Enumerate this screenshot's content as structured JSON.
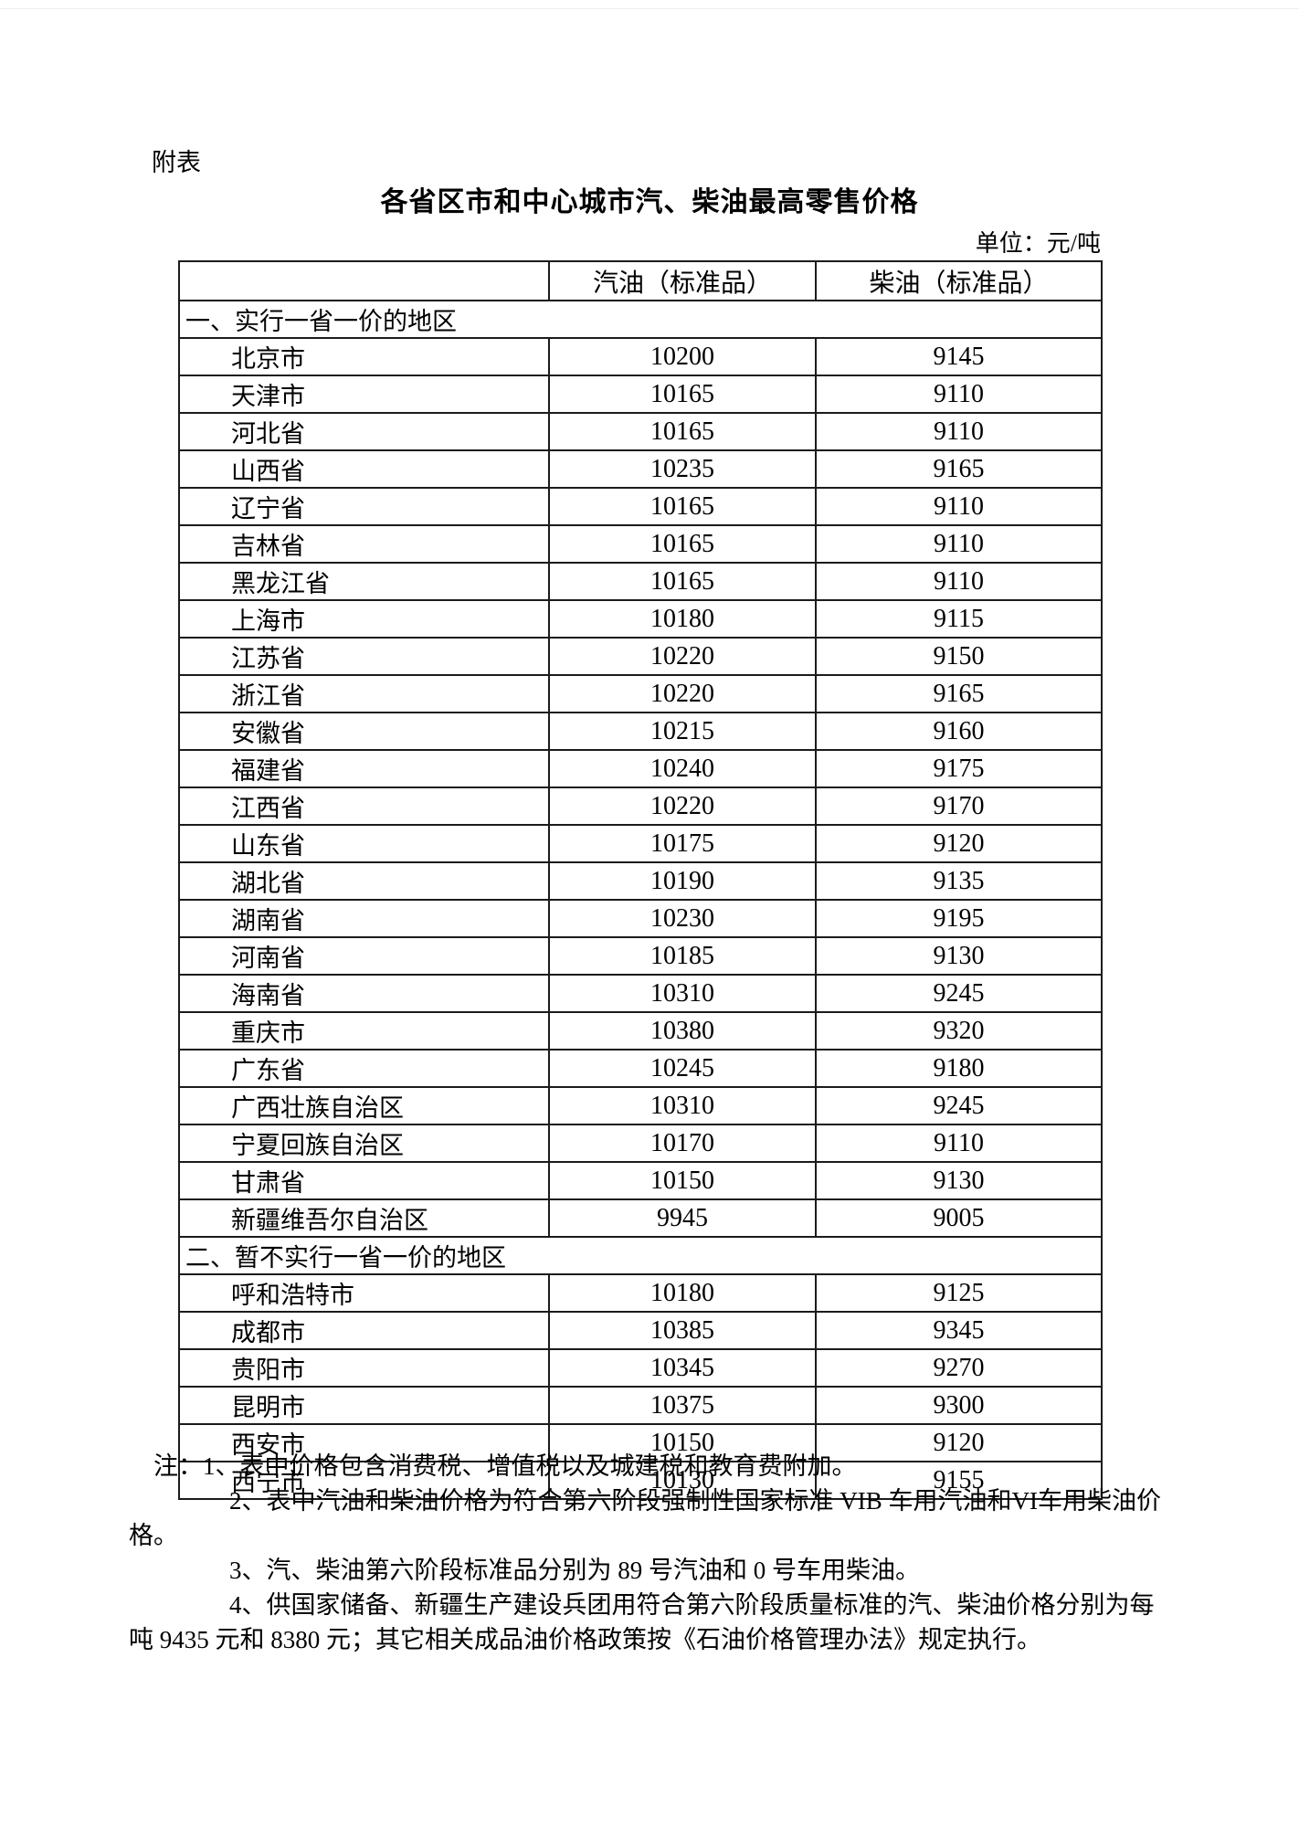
{
  "page": {
    "annex_label": "附表",
    "title": "各省区市和中心城市汽、柴油最高零售价格",
    "unit_label": "单位：元/吨"
  },
  "table": {
    "columns": [
      "",
      "汽油（标准品）",
      "柴油（标准品）"
    ],
    "sections": [
      {
        "heading": "一、实行一省一价的地区",
        "rows": [
          {
            "region": "北京市",
            "gasoline": "10200",
            "diesel": "9145"
          },
          {
            "region": "天津市",
            "gasoline": "10165",
            "diesel": "9110"
          },
          {
            "region": "河北省",
            "gasoline": "10165",
            "diesel": "9110"
          },
          {
            "region": "山西省",
            "gasoline": "10235",
            "diesel": "9165"
          },
          {
            "region": "辽宁省",
            "gasoline": "10165",
            "diesel": "9110"
          },
          {
            "region": "吉林省",
            "gasoline": "10165",
            "diesel": "9110"
          },
          {
            "region": "黑龙江省",
            "gasoline": "10165",
            "diesel": "9110"
          },
          {
            "region": "上海市",
            "gasoline": "10180",
            "diesel": "9115"
          },
          {
            "region": "江苏省",
            "gasoline": "10220",
            "diesel": "9150"
          },
          {
            "region": "浙江省",
            "gasoline": "10220",
            "diesel": "9165"
          },
          {
            "region": "安徽省",
            "gasoline": "10215",
            "diesel": "9160"
          },
          {
            "region": "福建省",
            "gasoline": "10240",
            "diesel": "9175"
          },
          {
            "region": "江西省",
            "gasoline": "10220",
            "diesel": "9170"
          },
          {
            "region": "山东省",
            "gasoline": "10175",
            "diesel": "9120"
          },
          {
            "region": "湖北省",
            "gasoline": "10190",
            "diesel": "9135"
          },
          {
            "region": "湖南省",
            "gasoline": "10230",
            "diesel": "9195"
          },
          {
            "region": "河南省",
            "gasoline": "10185",
            "diesel": "9130"
          },
          {
            "region": "海南省",
            "gasoline": "10310",
            "diesel": "9245"
          },
          {
            "region": "重庆市",
            "gasoline": "10380",
            "diesel": "9320"
          },
          {
            "region": "广东省",
            "gasoline": "10245",
            "diesel": "9180"
          },
          {
            "region": "广西壮族自治区",
            "gasoline": "10310",
            "diesel": "9245"
          },
          {
            "region": "宁夏回族自治区",
            "gasoline": "10170",
            "diesel": "9110"
          },
          {
            "region": "甘肃省",
            "gasoline": "10150",
            "diesel": "9130"
          },
          {
            "region": "新疆维吾尔自治区",
            "gasoline": "9945",
            "diesel": "9005"
          }
        ]
      },
      {
        "heading": "二、暂不实行一省一价的地区",
        "rows": [
          {
            "region": "呼和浩特市",
            "gasoline": "10180",
            "diesel": "9125"
          },
          {
            "region": "成都市",
            "gasoline": "10385",
            "diesel": "9345"
          },
          {
            "region": "贵阳市",
            "gasoline": "10345",
            "diesel": "9270"
          },
          {
            "region": "昆明市",
            "gasoline": "10375",
            "diesel": "9300"
          },
          {
            "region": "西安市",
            "gasoline": "10150",
            "diesel": "9120"
          },
          {
            "region": "西宁市",
            "gasoline": "10130",
            "diesel": "9155"
          }
        ]
      }
    ]
  },
  "notes": {
    "lines": [
      {
        "text": "注：1、表中价格包含消费税、增值税以及城建税和教育费附加。"
      },
      {
        "text": "2、表中汽油和柴油价格为符合第六阶段强制性国家标准 VIB 车用汽油和VI车用柴油价"
      },
      {
        "text": "格。"
      },
      {
        "text": "3、汽、柴油第六阶段标准品分别为 89 号汽油和 0 号车用柴油。"
      },
      {
        "text": "4、供国家储备、新疆生产建设兵团用符合第六阶段质量标准的汽、柴油价格分别为每"
      },
      {
        "text": "吨 9435 元和 8380 元；其它相关成品油价格政策按《石油价格管理办法》规定执行。"
      }
    ]
  }
}
